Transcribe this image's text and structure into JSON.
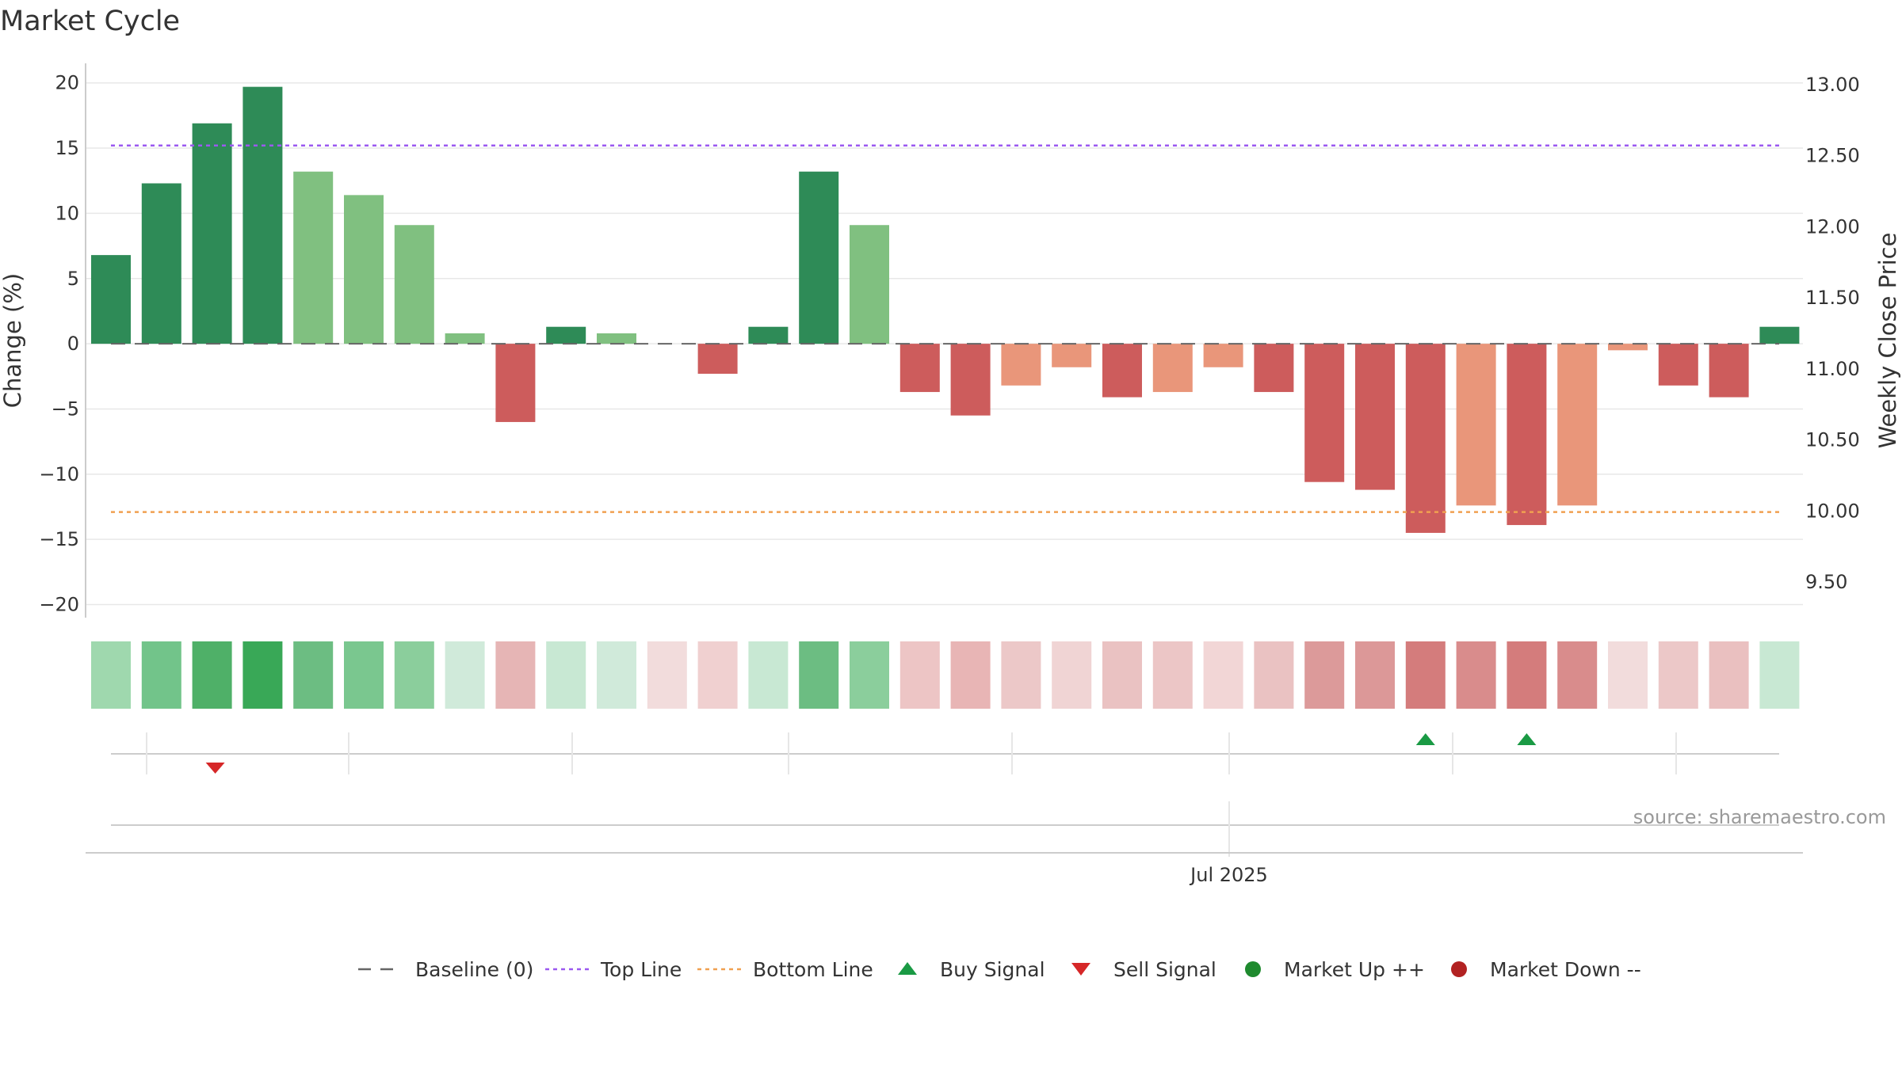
{
  "title": "Market Cycle",
  "source_label": "source: sharemaestro.com",
  "x_tick_label": "Jul 2025",
  "legend": [
    {
      "key": "baseline",
      "label": "Baseline (0)",
      "color": "#666666"
    },
    {
      "key": "top",
      "label": "Top Line",
      "color": "#9b59f0"
    },
    {
      "key": "bottom",
      "label": "Bottom Line",
      "color": "#f0a050"
    },
    {
      "key": "buy",
      "label": "Buy Signal",
      "color": "#1a9a44"
    },
    {
      "key": "sell",
      "label": "Sell Signal",
      "color": "#d62728"
    },
    {
      "key": "up",
      "label": "Market Up ++",
      "color": "#1e8a2e"
    },
    {
      "key": "down",
      "label": "Market Down --",
      "color": "#b22222"
    }
  ],
  "chart_data": {
    "type": "bar",
    "title": "Market Cycle",
    "ylabel": "Change (%)",
    "y2label": "Weekly Close Price",
    "ylim": [
      -21,
      21.5
    ],
    "y2lim": [
      9.25,
      13.15
    ],
    "yticks": [
      20,
      15,
      10,
      5,
      0,
      -5,
      -10,
      -15,
      -20
    ],
    "ytick_labels": [
      "20",
      "15",
      "10",
      "5",
      "0",
      "−5",
      "−10",
      "−15",
      "−20"
    ],
    "y2ticks": [
      13.0,
      12.5,
      12.0,
      11.5,
      11.0,
      10.5,
      10.0,
      9.5
    ],
    "y2tick_labels": [
      "13.00",
      "12.50",
      "12.00",
      "11.50",
      "11.00",
      "10.50",
      "10.00",
      "9.50"
    ],
    "top_line": 15.2,
    "bottom_line": -12.9,
    "values": [
      6.8,
      12.3,
      16.9,
      19.7,
      13.2,
      11.4,
      9.1,
      0.8,
      -6.0,
      1.3,
      0.8,
      0,
      -2.3,
      1.3,
      13.2,
      9.1,
      -3.7,
      -5.5,
      -3.2,
      -1.8,
      -4.1,
      -3.7,
      -1.8,
      -3.7,
      -10.6,
      -11.2,
      -14.5,
      -12.4,
      -13.9,
      -12.4,
      -0.5,
      -3.2,
      -4.1,
      1.3
    ],
    "bar_colors": [
      "#2e8b57",
      "#2e8b57",
      "#2e8b57",
      "#2e8b57",
      "#80c080",
      "#80c080",
      "#80c080",
      "#80c080",
      "#cd5c5c",
      "#2e8b57",
      "#80c080",
      "#cccccc",
      "#cd5c5c",
      "#2e8b57",
      "#2e8b57",
      "#80c080",
      "#cd5c5c",
      "#cd5c5c",
      "#e9967a",
      "#e9967a",
      "#cd5c5c",
      "#e9967a",
      "#e9967a",
      "#cd5c5c",
      "#cd5c5c",
      "#cd5c5c",
      "#cd5c5c",
      "#e9967a",
      "#cd5c5c",
      "#e9967a",
      "#e9967a",
      "#cd5c5c",
      "#cd5c5c",
      "#2e8b57"
    ],
    "heat_colors": [
      "#9fd8ae",
      "#72c48a",
      "#4fb068",
      "#39a857",
      "#6cbd82",
      "#7ac78f",
      "#8bce9c",
      "#d0eada",
      "#e6b5b5",
      "#c8e8d3",
      "#d0eada",
      "#f2dcdc",
      "#f0d0d0",
      "#c8e8d3",
      "#6cbd82",
      "#8bce9c",
      "#edc5c5",
      "#e8b5b5",
      "#ecc8c8",
      "#f0d4d4",
      "#eac2c2",
      "#ecc6c6",
      "#f2d6d6",
      "#eac2c2",
      "#dc9a9a",
      "#dc9898",
      "#d47c7c",
      "#d98c8c",
      "#d47c7c",
      "#d98c8c",
      "#f2dcdc",
      "#ecc8c8",
      "#eac0c0",
      "#c8e8d3"
    ],
    "buy_signals": [
      26,
      28
    ],
    "sell_signals": [
      2
    ]
  }
}
